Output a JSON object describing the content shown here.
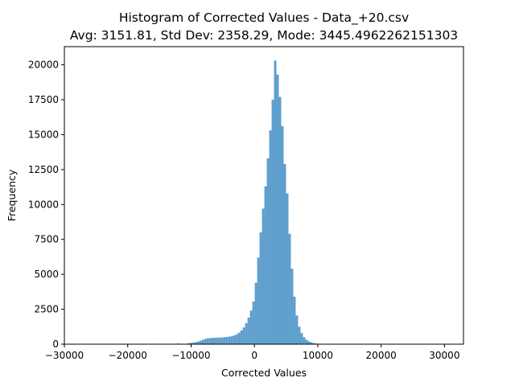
{
  "chart_data": {
    "type": "bar",
    "title_line1": "Histogram of Corrected Values - Data_+20.csv",
    "title_line2": "Avg: 3151.81, Std Dev: 2358.29, Mode: 3445.4962262151303",
    "xlabel": "Corrected Values",
    "ylabel": "Frequency",
    "xlim": [
      -30000,
      33000
    ],
    "ylim": [
      0,
      21300
    ],
    "x_ticks": [
      -30000,
      -20000,
      -10000,
      0,
      10000,
      20000,
      30000
    ],
    "x_tick_labels": [
      "−30000",
      "−20000",
      "−10000",
      "0",
      "10000",
      "20000",
      "30000"
    ],
    "y_ticks": [
      0,
      2500,
      5000,
      7500,
      10000,
      12500,
      15000,
      17500,
      20000
    ],
    "y_tick_labels": [
      "0",
      "2500",
      "5000",
      "7500",
      "10000",
      "12500",
      "15000",
      "17500",
      "20000"
    ],
    "bar_color": "#5f9fcd",
    "bin_width": 380,
    "bins": [
      {
        "x": -29500,
        "y": 10
      },
      {
        "x": -25000,
        "y": 15
      },
      {
        "x": -20000,
        "y": 20
      },
      {
        "x": -15000,
        "y": 35
      },
      {
        "x": -12000,
        "y": 50
      },
      {
        "x": -10400,
        "y": 70
      },
      {
        "x": -10020,
        "y": 90
      },
      {
        "x": -9640,
        "y": 110
      },
      {
        "x": -9260,
        "y": 140
      },
      {
        "x": -8880,
        "y": 190
      },
      {
        "x": -8500,
        "y": 250
      },
      {
        "x": -8120,
        "y": 320
      },
      {
        "x": -7740,
        "y": 380
      },
      {
        "x": -7360,
        "y": 420
      },
      {
        "x": -6980,
        "y": 440
      },
      {
        "x": -6600,
        "y": 450
      },
      {
        "x": -6220,
        "y": 460
      },
      {
        "x": -5840,
        "y": 470
      },
      {
        "x": -5460,
        "y": 480
      },
      {
        "x": -5080,
        "y": 490
      },
      {
        "x": -4700,
        "y": 500
      },
      {
        "x": -4320,
        "y": 520
      },
      {
        "x": -3940,
        "y": 540
      },
      {
        "x": -3560,
        "y": 570
      },
      {
        "x": -3180,
        "y": 620
      },
      {
        "x": -2800,
        "y": 700
      },
      {
        "x": -2420,
        "y": 820
      },
      {
        "x": -2040,
        "y": 980
      },
      {
        "x": -1660,
        "y": 1200
      },
      {
        "x": -1280,
        "y": 1500
      },
      {
        "x": -900,
        "y": 1900
      },
      {
        "x": -520,
        "y": 2400
      },
      {
        "x": -140,
        "y": 3050
      },
      {
        "x": 240,
        "y": 4400
      },
      {
        "x": 620,
        "y": 6200
      },
      {
        "x": 1000,
        "y": 8000
      },
      {
        "x": 1380,
        "y": 9700
      },
      {
        "x": 1760,
        "y": 11300
      },
      {
        "x": 2140,
        "y": 13300
      },
      {
        "x": 2520,
        "y": 15300
      },
      {
        "x": 2900,
        "y": 17500
      },
      {
        "x": 3280,
        "y": 20300
      },
      {
        "x": 3660,
        "y": 19300
      },
      {
        "x": 4040,
        "y": 17700
      },
      {
        "x": 4420,
        "y": 15600
      },
      {
        "x": 4800,
        "y": 12900
      },
      {
        "x": 5180,
        "y": 10800
      },
      {
        "x": 5560,
        "y": 7900
      },
      {
        "x": 5940,
        "y": 5400
      },
      {
        "x": 6320,
        "y": 3400
      },
      {
        "x": 6700,
        "y": 2050
      },
      {
        "x": 7080,
        "y": 1250
      },
      {
        "x": 7460,
        "y": 800
      },
      {
        "x": 7840,
        "y": 500
      },
      {
        "x": 8220,
        "y": 320
      },
      {
        "x": 8600,
        "y": 200
      },
      {
        "x": 8980,
        "y": 130
      },
      {
        "x": 9360,
        "y": 80
      },
      {
        "x": 9740,
        "y": 50
      },
      {
        "x": 10120,
        "y": 30
      },
      {
        "x": 10500,
        "y": 20
      },
      {
        "x": 12000,
        "y": 12
      },
      {
        "x": 15000,
        "y": 8
      },
      {
        "x": 20000,
        "y": 5
      },
      {
        "x": 25000,
        "y": 4
      },
      {
        "x": 30500,
        "y": 3
      }
    ],
    "grid": false,
    "legend": "none"
  }
}
